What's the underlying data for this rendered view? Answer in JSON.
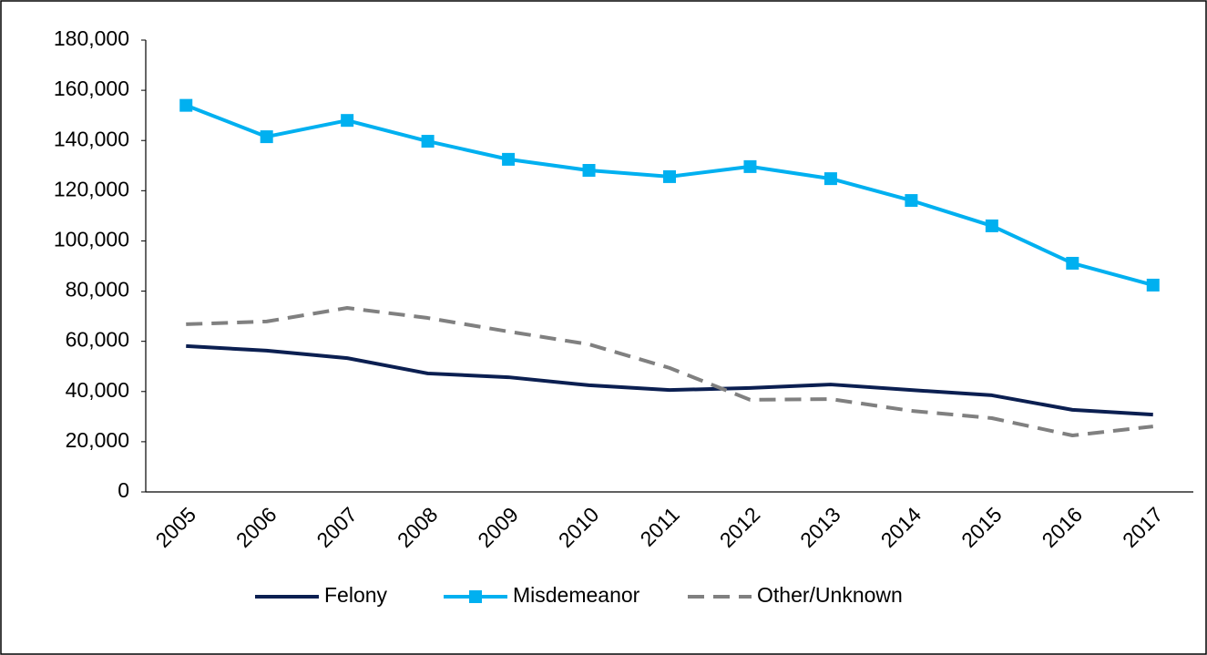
{
  "chart_data": {
    "type": "line",
    "categories": [
      "2005",
      "2006",
      "2007",
      "2008",
      "2009",
      "2010",
      "2011",
      "2012",
      "2013",
      "2014",
      "2015",
      "2016",
      "2017"
    ],
    "series": [
      {
        "name": "Felony",
        "color": "#0b1f51",
        "values": [
          58100,
          56300,
          53300,
          47200,
          45700,
          42500,
          40600,
          41400,
          42800,
          40600,
          38500,
          32700,
          30800
        ]
      },
      {
        "name": "Misdemeanor",
        "color": "#00b0f0",
        "marker": "square",
        "values": [
          154000,
          141500,
          148000,
          139700,
          132500,
          128100,
          125600,
          129600,
          124800,
          116100,
          106000,
          91100,
          82400
        ]
      },
      {
        "name": "Other/Unknown",
        "color": "#808080",
        "dashed": true,
        "values": [
          66800,
          67900,
          73300,
          69300,
          63900,
          58800,
          49400,
          36700,
          37000,
          32300,
          29400,
          22500,
          26100
        ]
      }
    ],
    "ylim": [
      0,
      180000
    ],
    "yticks": [
      0,
      {
        "value": 20000,
        "label": "20,000"
      },
      {
        "value": 40000,
        "label": "40,000"
      },
      {
        "value": 60000,
        "label": "60,000"
      },
      {
        "value": 80000,
        "label": "80,000"
      },
      {
        "value": 100000,
        "label": "100,000"
      },
      {
        "value": 120000,
        "label": "120,000"
      },
      {
        "value": 140000,
        "label": "140,000"
      },
      {
        "value": 160000,
        "label": "160,000"
      },
      {
        "value": 180000,
        "label": "180,000"
      }
    ],
    "legend": "bottom"
  }
}
